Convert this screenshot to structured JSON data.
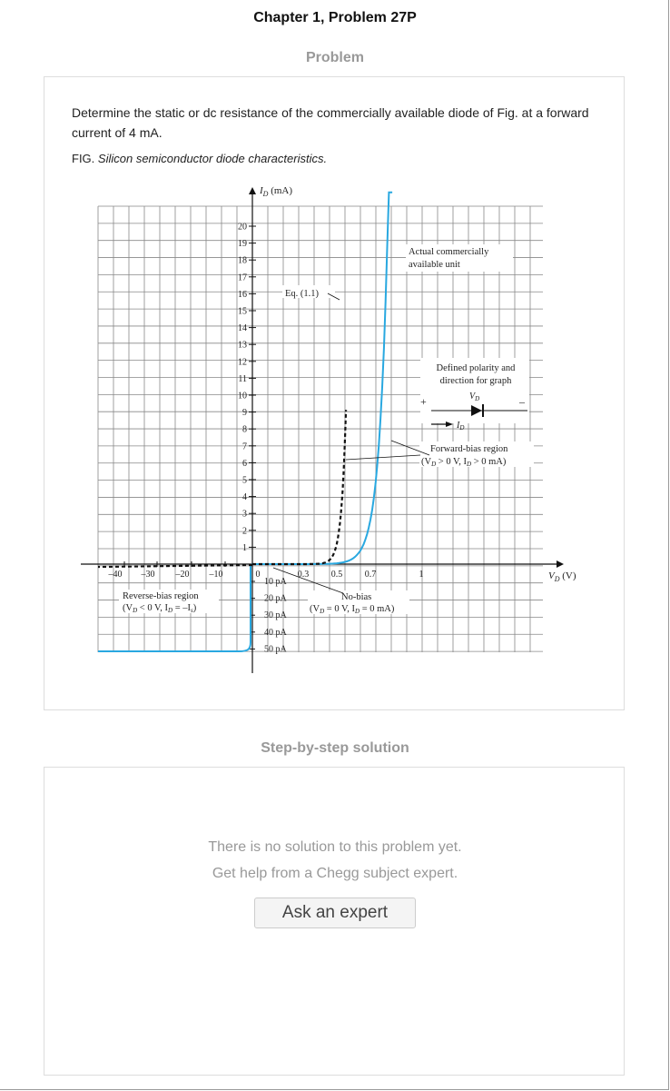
{
  "header": {
    "title": "Chapter 1, Problem 27P"
  },
  "problem": {
    "heading": "Problem",
    "text": "Determine the static or dc resistance of the commercially available diode of Fig. at a forward current of 4 mA.",
    "fig_prefix": "FIG.",
    "fig_caption": "Silicon semiconductor diode characteristics."
  },
  "figure": {
    "y_axis_label": "I",
    "y_axis_sub": "D",
    "y_axis_unit": " (mA)",
    "x_axis_label": "V",
    "x_axis_sub": "D",
    "x_axis_unit": "(V)",
    "y_ticks": [
      "1",
      "2",
      "3",
      "4",
      "5",
      "6",
      "7",
      "8",
      "9",
      "10",
      "11",
      "12",
      "13",
      "14",
      "15",
      "16",
      "17",
      "18",
      "19",
      "20"
    ],
    "x_ticks_neg": [
      "–40",
      "–30",
      "–20",
      "–10"
    ],
    "x_ticks_pos": [
      "0",
      "0.3",
      "0.5",
      "0.7",
      "1"
    ],
    "neg_current_ticks": [
      "10 pA",
      "20 pA",
      "30 pA",
      "40 pA",
      "50 pA"
    ],
    "eq_label": "Eq. (1.1)",
    "actual_label_1": "Actual commercially",
    "actual_label_2": "available unit",
    "polarity_label_1": "Defined polarity and",
    "polarity_label_2": "direction for graph",
    "plus": "+",
    "minus": "–",
    "vd_symbol": "V",
    "vd_sub": "D",
    "id_symbol": "I",
    "id_sub": "D",
    "forward_1": "Forward-bias region",
    "forward_2": "(V",
    "forward_2_sub": "D",
    "forward_2_rest": " > 0 V,  I",
    "forward_2_sub2": "D",
    "forward_2_end": " > 0  mA)",
    "reverse_1": "Reverse-bias region",
    "reverse_2": "(V",
    "reverse_2_sub": "D",
    "reverse_2_rest": " < 0 V, I",
    "reverse_2_sub2": "D",
    "reverse_2_end": " = –I",
    "reverse_2_sub3": "s",
    "reverse_2_close": ")",
    "nobias_1": "No-bias",
    "nobias_2": "(V",
    "nobias_2_sub": "D",
    "nobias_2_rest": " = 0 V, I",
    "nobias_2_sub2": "D",
    "nobias_2_end": " = 0 mA)",
    "colors": {
      "curve": "#29a8e0",
      "grid": "#888888",
      "dashed": "#111111"
    }
  },
  "solution": {
    "heading": "Step-by-step solution",
    "line1": "There is no solution to this problem yet.",
    "line2": "Get help from a Chegg subject expert.",
    "ask_button": "Ask an expert"
  }
}
